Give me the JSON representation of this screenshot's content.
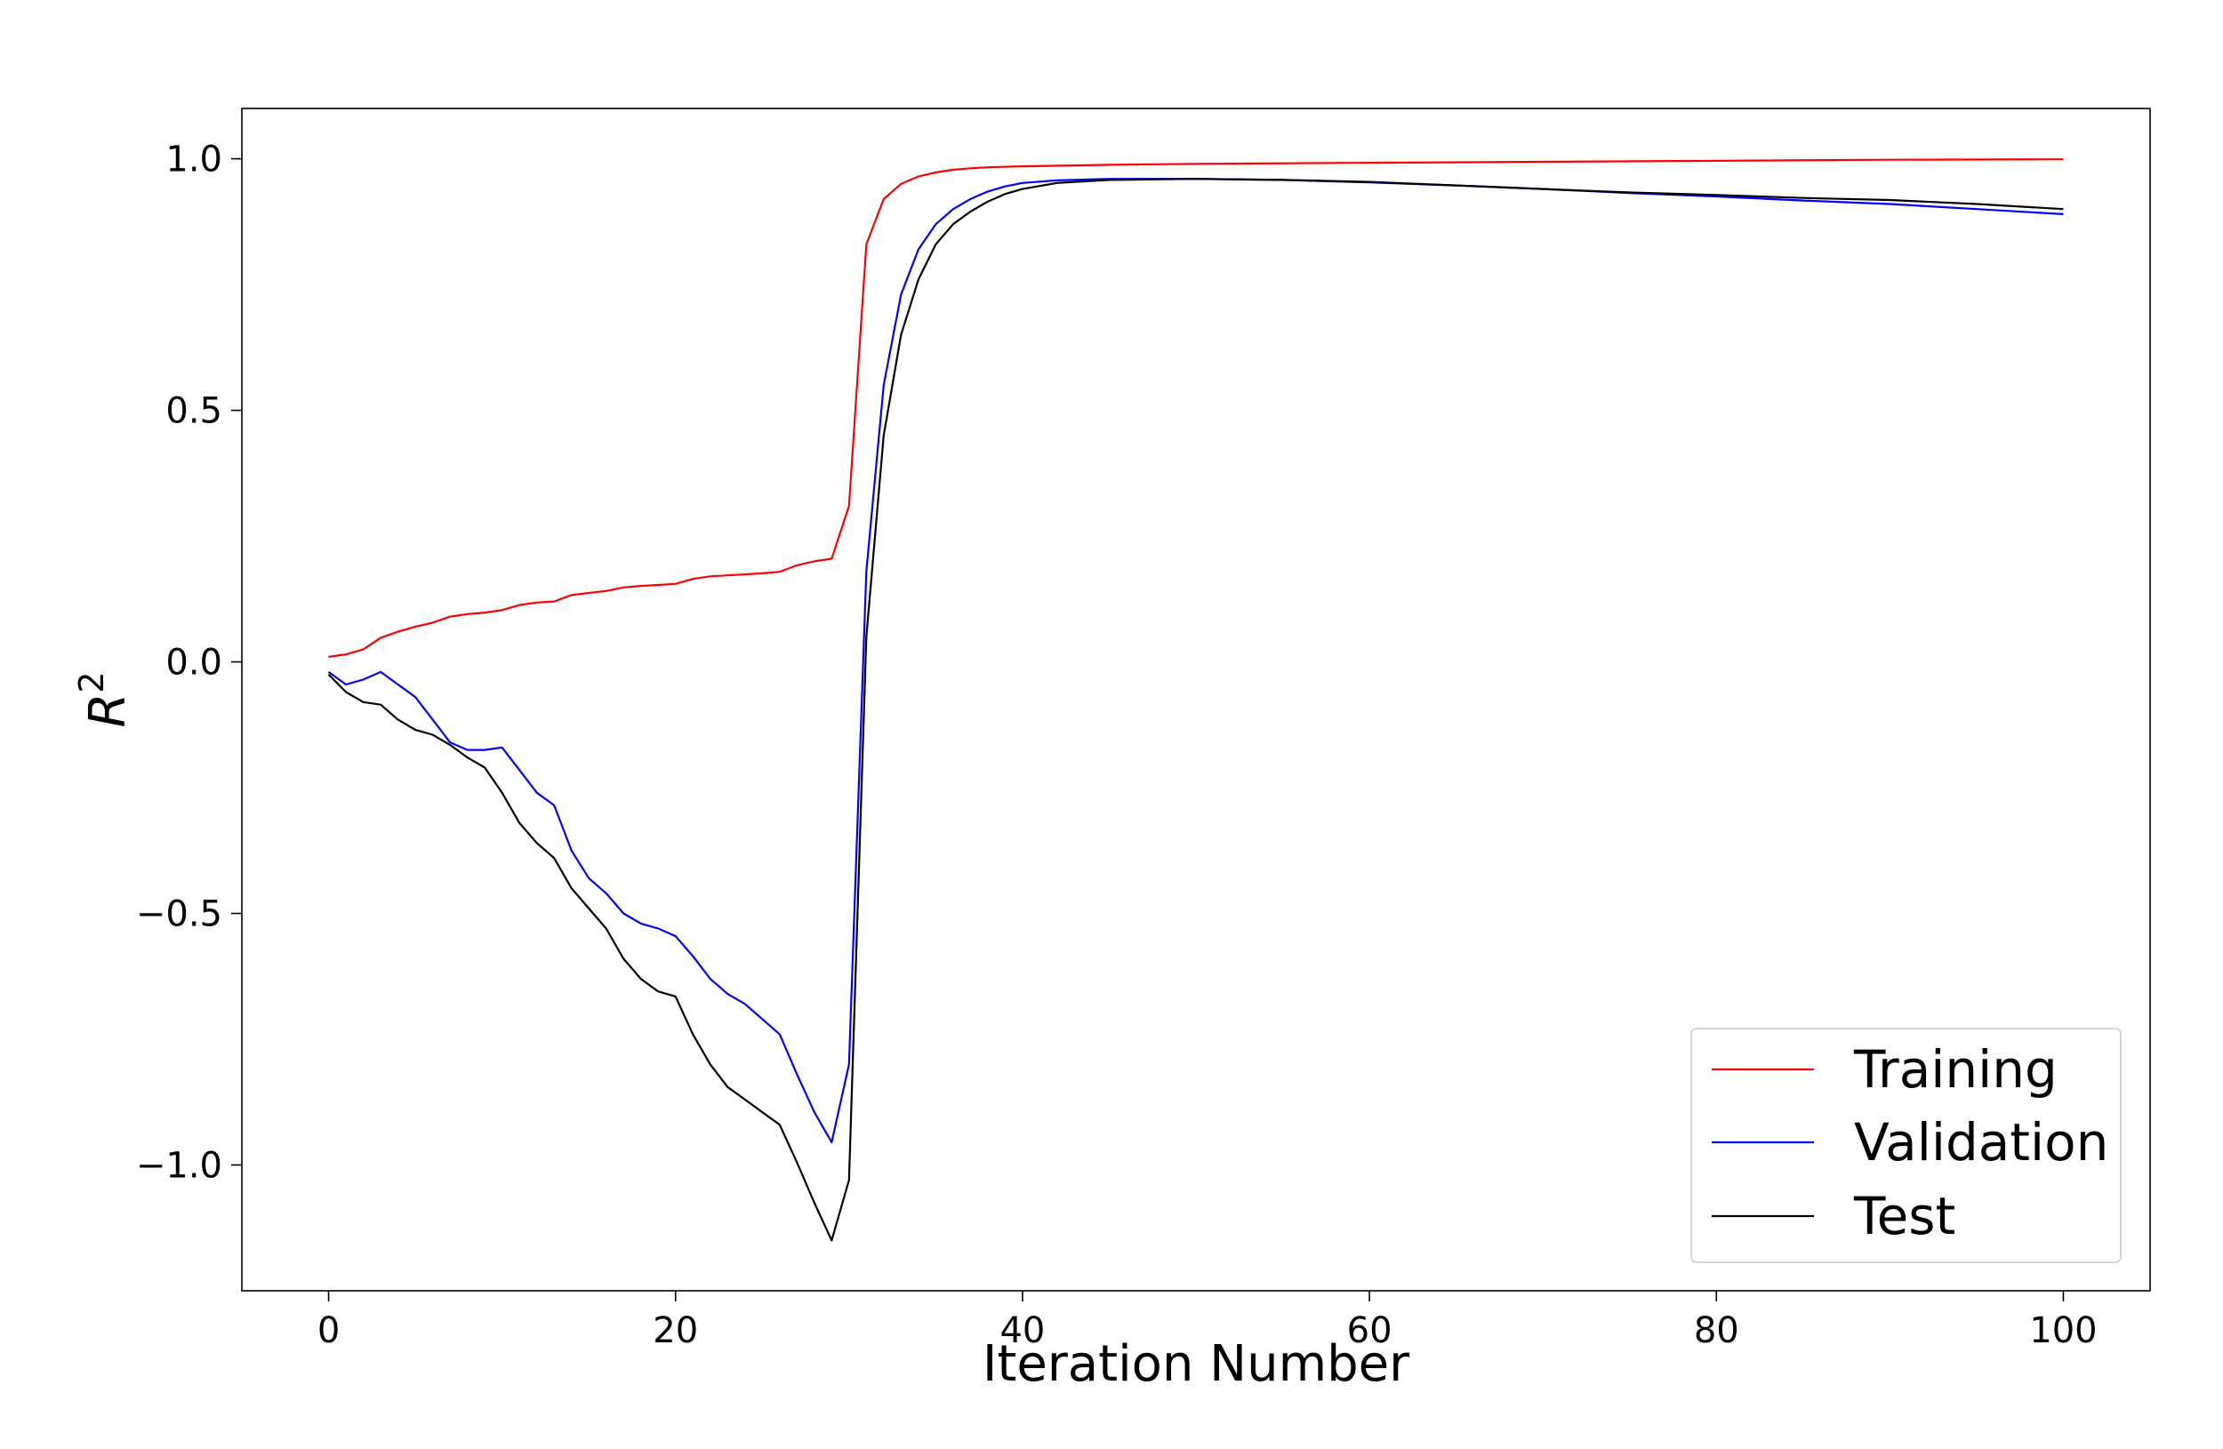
{
  "chart_data": {
    "type": "line",
    "xlabel": "Iteration Number",
    "ylabel": "R",
    "ylabel_superscript": "2",
    "xlim": [
      -5,
      105
    ],
    "ylim": [
      -1.25,
      1.1
    ],
    "xticks": [
      0,
      20,
      40,
      60,
      80,
      100
    ],
    "xtick_labels": [
      "0",
      "20",
      "40",
      "60",
      "80",
      "100"
    ],
    "yticks": [
      -1.0,
      -0.5,
      0.0,
      0.5,
      1.0
    ],
    "ytick_labels": [
      "−1.0",
      "−0.5",
      "0.0",
      "0.5",
      "1.0"
    ],
    "grid": false,
    "legend_position": "lower-right",
    "series": [
      {
        "name": "Training",
        "color": "#ff0000",
        "points": [
          [
            0,
            0.01
          ],
          [
            1,
            0.015
          ],
          [
            2,
            0.025
          ],
          [
            3,
            0.048
          ],
          [
            4,
            0.06
          ],
          [
            5,
            0.07
          ],
          [
            6,
            0.078
          ],
          [
            7,
            0.09
          ],
          [
            8,
            0.095
          ],
          [
            9,
            0.098
          ],
          [
            10,
            0.103
          ],
          [
            11,
            0.113
          ],
          [
            12,
            0.118
          ],
          [
            13,
            0.12
          ],
          [
            14,
            0.133
          ],
          [
            15,
            0.137
          ],
          [
            16,
            0.141
          ],
          [
            17,
            0.148
          ],
          [
            18,
            0.151
          ],
          [
            19,
            0.153
          ],
          [
            20,
            0.155
          ],
          [
            21,
            0.165
          ],
          [
            22,
            0.17
          ],
          [
            23,
            0.172
          ],
          [
            24,
            0.174
          ],
          [
            25,
            0.176
          ],
          [
            26,
            0.179
          ],
          [
            27,
            0.192
          ],
          [
            28,
            0.2
          ],
          [
            29,
            0.205
          ],
          [
            30,
            0.31
          ],
          [
            31,
            0.83
          ],
          [
            32,
            0.92
          ],
          [
            33,
            0.95
          ],
          [
            34,
            0.965
          ],
          [
            35,
            0.973
          ],
          [
            36,
            0.978
          ],
          [
            37,
            0.981
          ],
          [
            38,
            0.983
          ],
          [
            40,
            0.985
          ],
          [
            45,
            0.988
          ],
          [
            50,
            0.99
          ],
          [
            60,
            0.992
          ],
          [
            70,
            0.994
          ],
          [
            80,
            0.996
          ],
          [
            90,
            0.998
          ],
          [
            100,
            0.999
          ]
        ]
      },
      {
        "name": "Validation",
        "color": "#0000ff",
        "points": [
          [
            0,
            -0.02
          ],
          [
            1,
            -0.045
          ],
          [
            2,
            -0.035
          ],
          [
            3,
            -0.02
          ],
          [
            4,
            -0.045
          ],
          [
            5,
            -0.07
          ],
          [
            6,
            -0.115
          ],
          [
            7,
            -0.16
          ],
          [
            8,
            -0.175
          ],
          [
            9,
            -0.175
          ],
          [
            10,
            -0.17
          ],
          [
            11,
            -0.215
          ],
          [
            12,
            -0.26
          ],
          [
            13,
            -0.285
          ],
          [
            14,
            -0.375
          ],
          [
            15,
            -0.43
          ],
          [
            16,
            -0.46
          ],
          [
            17,
            -0.5
          ],
          [
            18,
            -0.52
          ],
          [
            19,
            -0.53
          ],
          [
            20,
            -0.545
          ],
          [
            21,
            -0.585
          ],
          [
            22,
            -0.63
          ],
          [
            23,
            -0.66
          ],
          [
            24,
            -0.68
          ],
          [
            25,
            -0.71
          ],
          [
            26,
            -0.74
          ],
          [
            27,
            -0.82
          ],
          [
            28,
            -0.895
          ],
          [
            29,
            -0.955
          ],
          [
            30,
            -0.8
          ],
          [
            31,
            0.18
          ],
          [
            32,
            0.55
          ],
          [
            33,
            0.73
          ],
          [
            34,
            0.82
          ],
          [
            35,
            0.87
          ],
          [
            36,
            0.9
          ],
          [
            37,
            0.92
          ],
          [
            38,
            0.935
          ],
          [
            39,
            0.945
          ],
          [
            40,
            0.952
          ],
          [
            42,
            0.957
          ],
          [
            45,
            0.96
          ],
          [
            50,
            0.96
          ],
          [
            55,
            0.958
          ],
          [
            60,
            0.953
          ],
          [
            65,
            0.947
          ],
          [
            70,
            0.94
          ],
          [
            75,
            0.932
          ],
          [
            80,
            0.925
          ],
          [
            85,
            0.917
          ],
          [
            90,
            0.91
          ],
          [
            95,
            0.9
          ],
          [
            100,
            0.89
          ]
        ]
      },
      {
        "name": "Test",
        "color": "#000000",
        "points": [
          [
            0,
            -0.025
          ],
          [
            1,
            -0.06
          ],
          [
            2,
            -0.08
          ],
          [
            3,
            -0.085
          ],
          [
            4,
            -0.115
          ],
          [
            5,
            -0.135
          ],
          [
            6,
            -0.145
          ],
          [
            7,
            -0.165
          ],
          [
            8,
            -0.19
          ],
          [
            9,
            -0.21
          ],
          [
            10,
            -0.26
          ],
          [
            11,
            -0.32
          ],
          [
            12,
            -0.36
          ],
          [
            13,
            -0.39
          ],
          [
            14,
            -0.45
          ],
          [
            15,
            -0.49
          ],
          [
            16,
            -0.53
          ],
          [
            17,
            -0.59
          ],
          [
            18,
            -0.63
          ],
          [
            19,
            -0.655
          ],
          [
            20,
            -0.665
          ],
          [
            21,
            -0.74
          ],
          [
            22,
            -0.8
          ],
          [
            23,
            -0.845
          ],
          [
            24,
            -0.87
          ],
          [
            25,
            -0.895
          ],
          [
            26,
            -0.92
          ],
          [
            27,
            -0.995
          ],
          [
            28,
            -1.075
          ],
          [
            29,
            -1.15
          ],
          [
            30,
            -1.03
          ],
          [
            31,
            0.05
          ],
          [
            32,
            0.45
          ],
          [
            33,
            0.65
          ],
          [
            34,
            0.76
          ],
          [
            35,
            0.83
          ],
          [
            36,
            0.87
          ],
          [
            37,
            0.895
          ],
          [
            38,
            0.915
          ],
          [
            39,
            0.93
          ],
          [
            40,
            0.94
          ],
          [
            42,
            0.952
          ],
          [
            45,
            0.958
          ],
          [
            50,
            0.96
          ],
          [
            55,
            0.958
          ],
          [
            60,
            0.954
          ],
          [
            65,
            0.947
          ],
          [
            70,
            0.94
          ],
          [
            75,
            0.933
          ],
          [
            80,
            0.928
          ],
          [
            85,
            0.922
          ],
          [
            90,
            0.918
          ],
          [
            95,
            0.91
          ],
          [
            100,
            0.9
          ]
        ]
      }
    ]
  }
}
